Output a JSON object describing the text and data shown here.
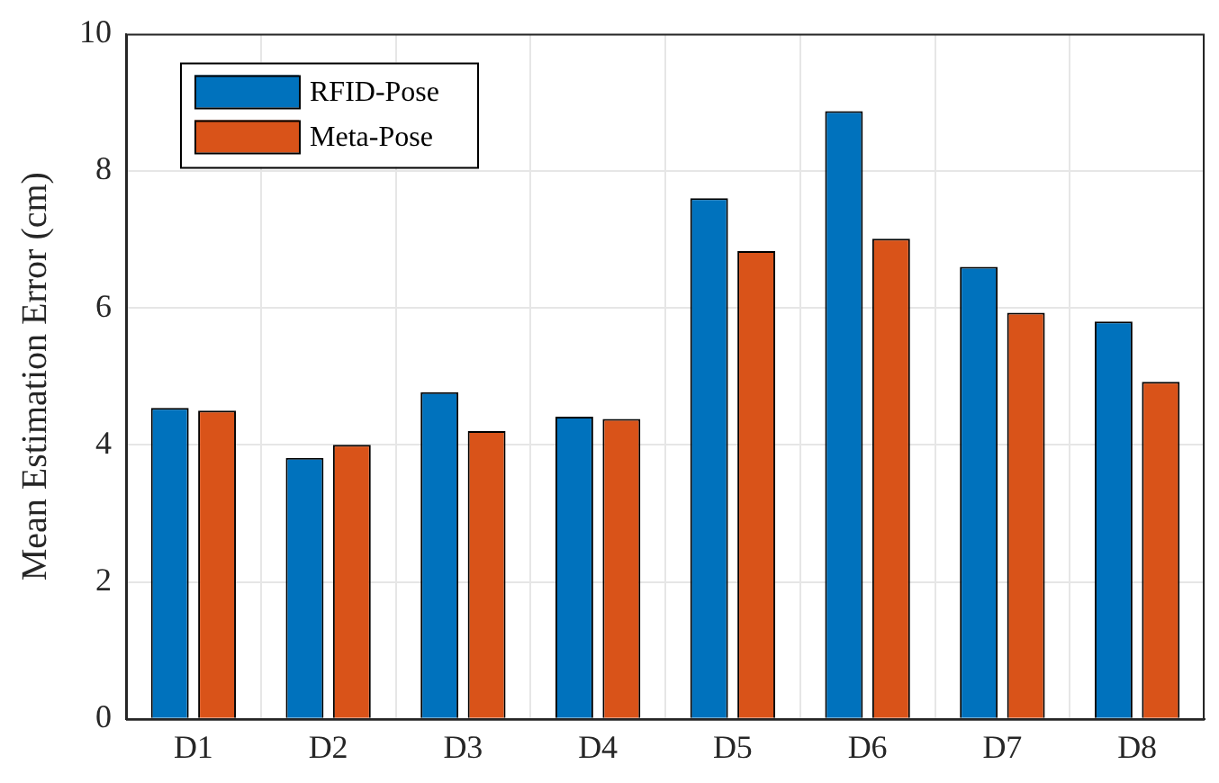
{
  "chart_data": {
    "type": "bar",
    "ylabel": "Mean Estimation Error (cm)",
    "categories": [
      "D1",
      "D2",
      "D3",
      "D4",
      "D5",
      "D6",
      "D7",
      "D8"
    ],
    "series": [
      {
        "name": "RFID-Pose",
        "color": "#0072bd",
        "values": [
          4.54,
          3.81,
          4.77,
          4.41,
          7.6,
          8.87,
          6.6,
          5.8
        ]
      },
      {
        "name": "Meta-Pose",
        "color": "#d95319",
        "values": [
          4.5,
          4.0,
          4.2,
          4.38,
          6.83,
          7.01,
          5.93,
          4.92
        ]
      }
    ],
    "ylim": [
      0,
      10
    ],
    "yticks": [
      0,
      2,
      4,
      6,
      8,
      10
    ],
    "grid": true,
    "legend": "top left"
  }
}
